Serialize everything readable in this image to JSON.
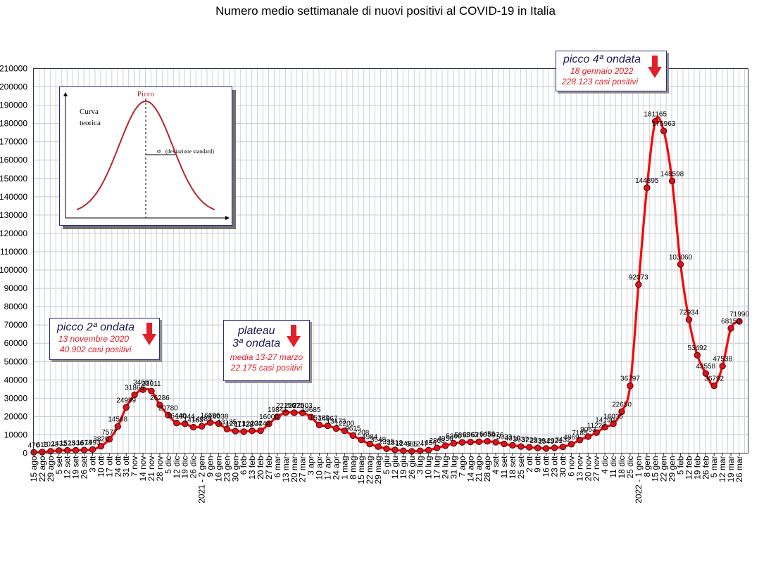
{
  "chart_data": {
    "type": "line",
    "title": "Numero medio settimanale di nuovi positivi al COVID-19 in Italia",
    "xlabel": "",
    "ylabel": "",
    "ylim": [
      0,
      210000
    ],
    "y_ticks": [
      0,
      10000,
      20000,
      30000,
      40000,
      50000,
      60000,
      70000,
      80000,
      90000,
      100000,
      110000,
      120000,
      130000,
      140000,
      150000,
      160000,
      170000,
      180000,
      190000,
      200000,
      210000
    ],
    "grid": true,
    "line_color": "#ff0000",
    "marker_color": "#d9141c",
    "categories": [
      "15 ago",
      "22 ago",
      "29 ago",
      "5 set",
      "12 set",
      "19 set",
      "26 set",
      "3 ott",
      "10 ott",
      "17 ott",
      "24 ott",
      "31 ott",
      "7 nov",
      "14 nov",
      "21 nov",
      "28 nov",
      "5 dic",
      "12 dic",
      "19 dic",
      "26 dic",
      "2021 - 2 gen",
      "9 gen",
      "16 gen",
      "23 gen",
      "30 gen",
      "6 feb",
      "13 feb",
      "20 feb",
      "27 feb",
      "6 mar",
      "13 mar",
      "20 mar",
      "27 mar",
      "3 apr",
      "10 apr",
      "17 apr",
      "24 apr",
      "1 mag",
      "8 mag",
      "15 mag",
      "22 mag",
      "29 mag",
      "5 giu",
      "12 giu",
      "19 giu",
      "26 giu",
      "3 lug",
      "10 lug",
      "17 lug",
      "24 lug",
      "31 lug",
      "7 ago",
      "14 ago",
      "21 ago",
      "28 ago",
      "4 set",
      "11 set",
      "18 set",
      "25 set",
      "2 ott",
      "9 ott",
      "16 ott",
      "23 ott",
      "30 ott",
      "6 nov",
      "13 nov",
      "20 nov",
      "27 nov",
      "4 dic",
      "11 dic",
      "18 dic",
      "25 dic",
      "2022 - 1 gen",
      "8 gen",
      "15 gen",
      "22 gen",
      "29 gen",
      "5 feb",
      "12 feb",
      "19 feb",
      "26 feb",
      "5 mar",
      "12 mar",
      "19 mar",
      "26 mar"
    ],
    "values": [
      470,
      615,
      1023,
      1432,
      1523,
      1536,
      1674,
      1993,
      3820,
      7577,
      14568,
      24999,
      31866,
      34687,
      33911,
      26286,
      20780,
      16440,
      16044,
      14163,
      14685,
      16696,
      16038,
      13135,
      12071,
      11728,
      12204,
      12244,
      16000,
      19841,
      22156,
      22075,
      22003,
      19685,
      15362,
      14967,
      13473,
      12200,
      9615,
      7208,
      4984,
      3548,
      2395,
      1818,
      1249,
      985,
      1247,
      1654,
      2868,
      4056,
      5360,
      5893,
      6063,
      6210,
      6456,
      5976,
      5033,
      4310,
      3637,
      3223,
      2839,
      2543,
      2921,
      3432,
      4869,
      7185,
      9063,
      11227,
      14190,
      16035,
      22650,
      36797,
      92073,
      144895,
      181165,
      175963,
      148598,
      103060,
      72934,
      53492,
      43558,
      36792,
      47538,
      68150,
      71990
    ],
    "value_labels": [
      "470",
      "615",
      "1023",
      "1432",
      "1523",
      "1536",
      "1674",
      "1993",
      "3820",
      "7577",
      "14568",
      "24999",
      "31866",
      "34687",
      "33911",
      "26286",
      "20780",
      "16440",
      "16044",
      "14163",
      "14685",
      "16696",
      "16038",
      "13135",
      "12071",
      "11728",
      "12204",
      "12244",
      "16000",
      "19841",
      "22156",
      "22075",
      "22003",
      "19685",
      "15362",
      "14967",
      "13473",
      "12200",
      "9615",
      "7208",
      "4984",
      "3548",
      "2395",
      "1818",
      "1249",
      "985",
      "1247",
      "1654",
      "2868",
      "4056",
      "5360",
      "5893",
      "6063",
      "6210",
      "6456",
      "5976",
      "5033",
      "4310",
      "3637",
      "3223",
      "2839",
      "2543",
      "2921",
      "3432",
      "4869",
      "7185",
      "9063",
      "11227",
      "14190",
      "16035",
      "22650",
      "36797",
      "92073",
      "144895",
      "181165",
      "175963",
      "148598",
      "103060",
      "72934",
      "53492",
      "43558",
      "36792",
      "47538",
      "68150",
      "71990"
    ]
  },
  "callouts": {
    "peak2": {
      "head": "picco 2ª ondata",
      "line1": "13 novembre 2020",
      "line2": "40.902 casi positivi"
    },
    "peak3": {
      "head1": "plateau",
      "head2": "3ª ondata",
      "line1": "media 13-27 marzo",
      "line2": "22.175 casi positivi"
    },
    "peak4": {
      "head": "picco 4ª ondata",
      "line1": "18 gennaio 2022",
      "line2": "228.123 casi positivi"
    }
  },
  "inset": {
    "peak_label": "Picco",
    "curve_label_1": "Curva",
    "curve_label_2": "teorica",
    "sigma_symbol": "σ",
    "sigma_label": "(deviazione standard)",
    "curve_color": "#b3282d"
  },
  "arrow_color": "#e3202a"
}
